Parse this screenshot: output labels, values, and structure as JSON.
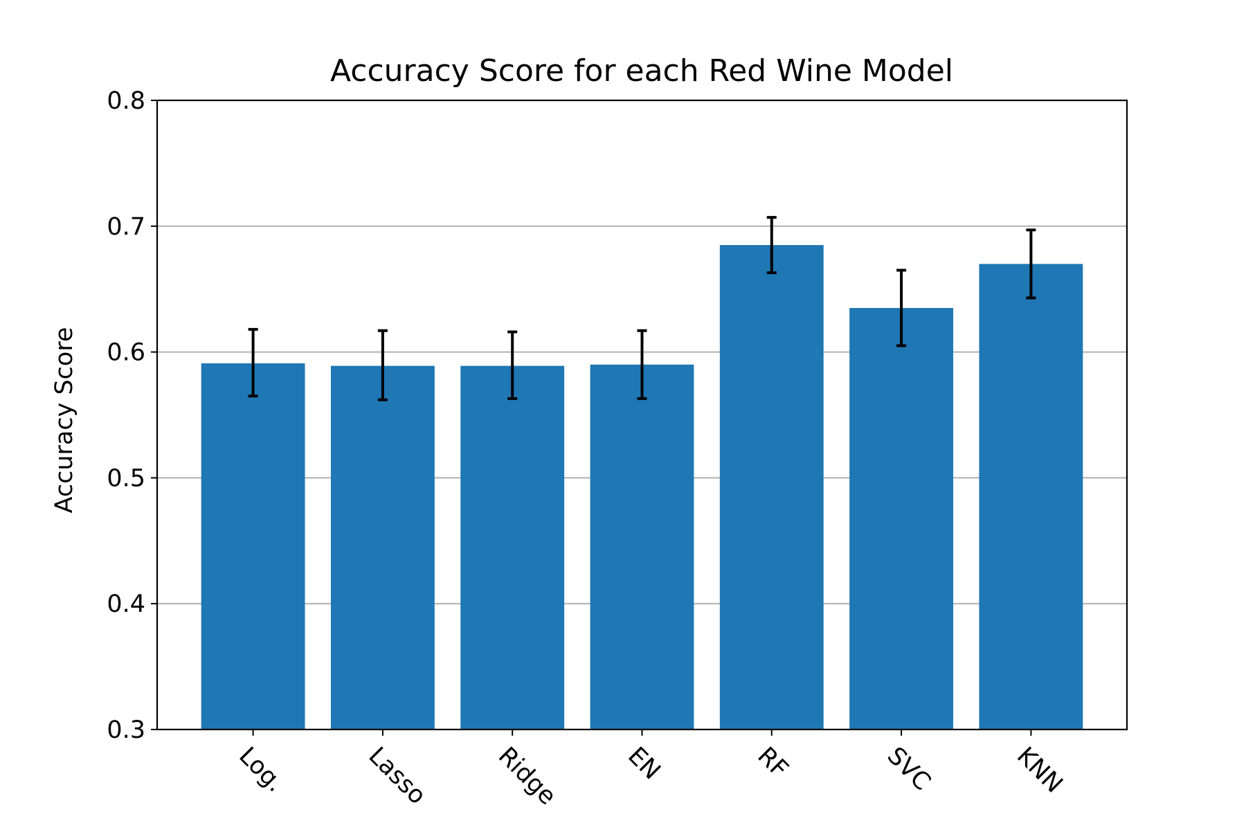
{
  "chart_data": {
    "type": "bar",
    "title": "Accuracy Score for each Red Wine Model",
    "xlabel": "",
    "ylabel": "Accuracy Score",
    "categories": [
      "Log.",
      "Lasso",
      "Ridge",
      "EN",
      "RF",
      "SVC",
      "KNN"
    ],
    "values": [
      0.591,
      0.589,
      0.589,
      0.59,
      0.685,
      0.635,
      0.67
    ],
    "error_low": [
      0.565,
      0.562,
      0.563,
      0.563,
      0.663,
      0.605,
      0.643
    ],
    "error_high": [
      0.618,
      0.617,
      0.616,
      0.617,
      0.707,
      0.665,
      0.697
    ],
    "ylim": [
      0.3,
      0.8
    ],
    "yticks": [
      0.3,
      0.4,
      0.5,
      0.6,
      0.7,
      0.8
    ],
    "ytick_labels": [
      "0.3",
      "0.4",
      "0.5",
      "0.6",
      "0.7",
      "0.8"
    ],
    "grid": "horizontal",
    "legend": "none",
    "bar_color": "#1f77b4",
    "error_color": "#000000",
    "grid_color": "#b0b0b0",
    "xtick_rotation_deg": 45
  }
}
